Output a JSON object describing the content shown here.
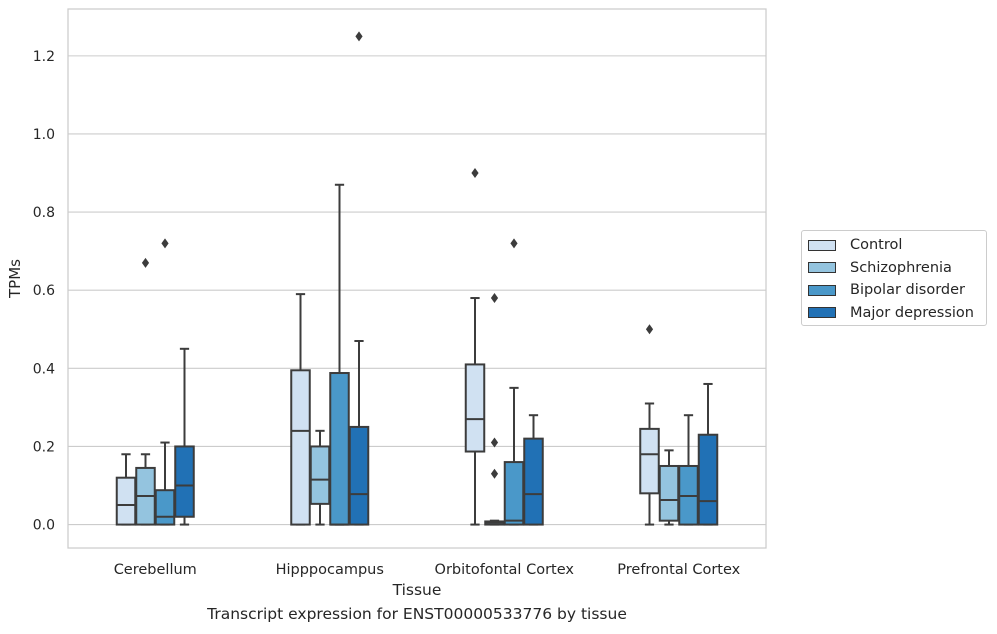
{
  "chart_data": {
    "type": "box",
    "title": "Transcript expression for ENST00000533776 by tissue",
    "xlabel": "Tissue",
    "ylabel": "TPMs",
    "ylim": [
      -0.06,
      1.32
    ],
    "yticks": [
      "0.0",
      "0.2",
      "0.4",
      "0.6",
      "0.8",
      "1.0",
      "1.2"
    ],
    "grid": true,
    "legend_position": "right",
    "categories": [
      "Cerebellum",
      "Hipppocampus",
      "Orbitofontal Cortex",
      "Prefrontal Cortex"
    ],
    "series": [
      {
        "name": "Control",
        "color": "#d0e1f2",
        "boxes": [
          {
            "min": 0.0,
            "q1": 0.0,
            "median": 0.05,
            "q3": 0.12,
            "max": 0.18,
            "outliers": []
          },
          {
            "min": 0.0,
            "q1": 0.0,
            "median": 0.24,
            "q3": 0.395,
            "max": 0.59,
            "outliers": []
          },
          {
            "min": 0.0,
            "q1": 0.187,
            "median": 0.27,
            "q3": 0.41,
            "max": 0.58,
            "outliers": [
              0.9
            ]
          },
          {
            "min": 0.0,
            "q1": 0.08,
            "median": 0.18,
            "q3": 0.245,
            "max": 0.31,
            "outliers": [
              0.5
            ]
          }
        ]
      },
      {
        "name": "Schizophrenia",
        "color": "#94c4df",
        "boxes": [
          {
            "min": 0.0,
            "q1": 0.0,
            "median": 0.073,
            "q3": 0.145,
            "max": 0.18,
            "outliers": [
              0.67
            ]
          },
          {
            "min": 0.0,
            "q1": 0.053,
            "median": 0.115,
            "q3": 0.2,
            "max": 0.24,
            "outliers": []
          },
          {
            "min": 0.0,
            "q1": 0.0,
            "median": 0.005,
            "q3": 0.008,
            "max": 0.01,
            "outliers": [
              0.13,
              0.21,
              0.58
            ]
          },
          {
            "min": 0.0,
            "q1": 0.01,
            "median": 0.063,
            "q3": 0.15,
            "max": 0.19,
            "outliers": []
          }
        ]
      },
      {
        "name": "Bipolar disorder",
        "color": "#4a98c9",
        "boxes": [
          {
            "min": 0.0,
            "q1": 0.0,
            "median": 0.02,
            "q3": 0.088,
            "max": 0.21,
            "outliers": [
              0.72
            ]
          },
          {
            "min": 0.0,
            "q1": 0.0,
            "median": 0.0,
            "q3": 0.388,
            "max": 0.87,
            "outliers": []
          },
          {
            "min": 0.0,
            "q1": 0.0,
            "median": 0.01,
            "q3": 0.16,
            "max": 0.35,
            "outliers": [
              0.72
            ]
          },
          {
            "min": 0.0,
            "q1": 0.0,
            "median": 0.073,
            "q3": 0.15,
            "max": 0.28,
            "outliers": []
          }
        ]
      },
      {
        "name": "Major depression",
        "color": "#2171b5",
        "boxes": [
          {
            "min": 0.0,
            "q1": 0.02,
            "median": 0.1,
            "q3": 0.2,
            "max": 0.45,
            "outliers": []
          },
          {
            "min": 0.0,
            "q1": 0.0,
            "median": 0.078,
            "q3": 0.25,
            "max": 0.47,
            "outliers": [
              1.25
            ]
          },
          {
            "min": 0.0,
            "q1": 0.0,
            "median": 0.078,
            "q3": 0.22,
            "max": 0.28,
            "outliers": []
          },
          {
            "min": 0.0,
            "q1": 0.0,
            "median": 0.06,
            "q3": 0.23,
            "max": 0.36,
            "outliers": []
          }
        ]
      }
    ]
  }
}
